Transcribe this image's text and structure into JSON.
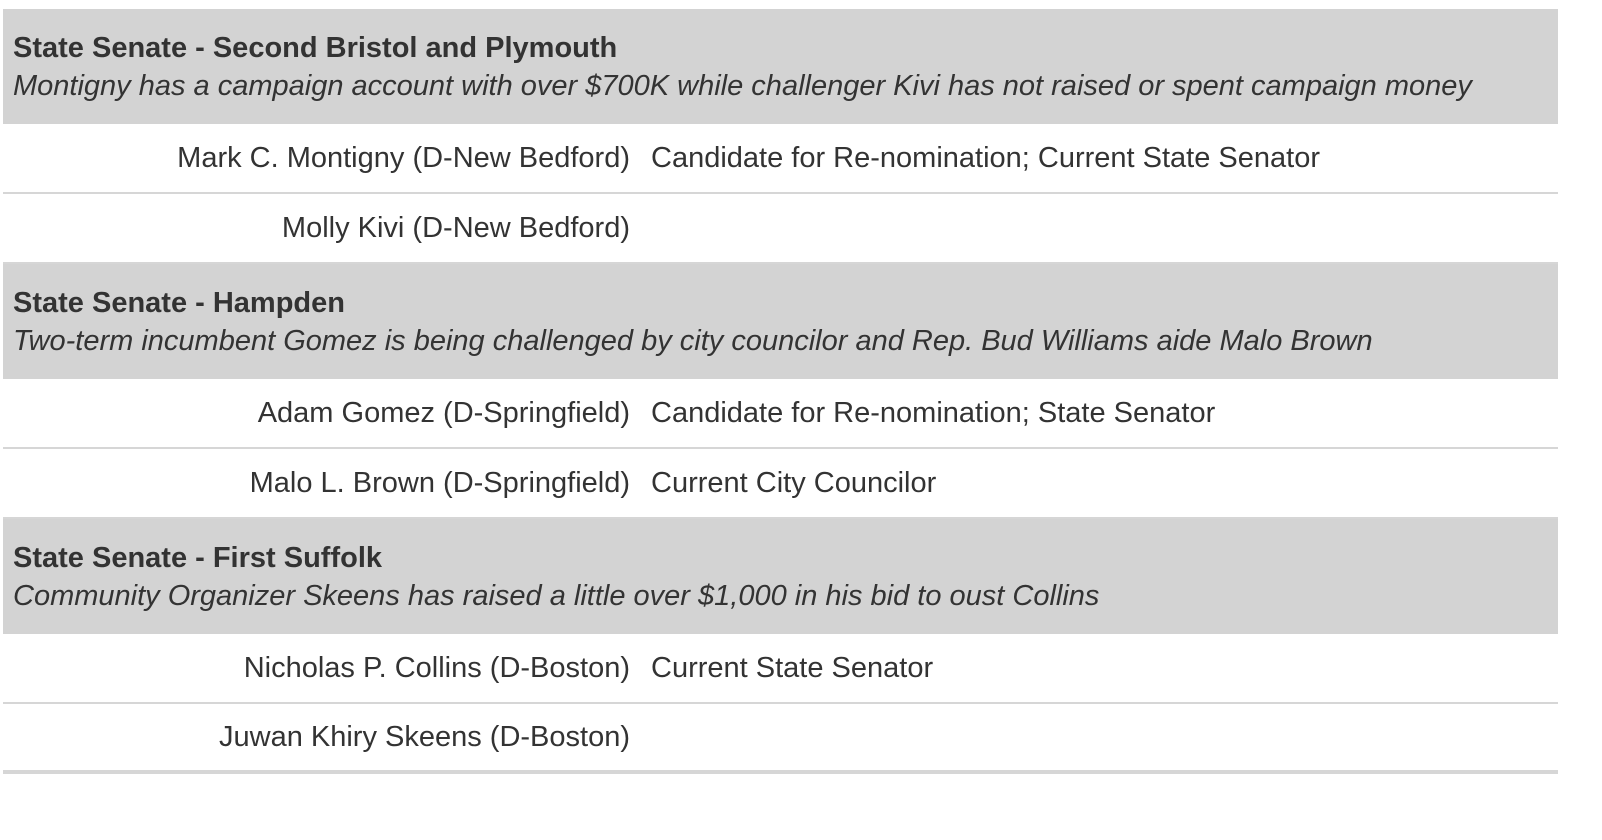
{
  "races": [
    {
      "title": "State Senate - Second Bristol and Plymouth",
      "note": "Montigny has a campaign account with over $700K while challenger Kivi has not raised or spent campaign money",
      "candidates": [
        {
          "name": "Mark C. Montigny (D-New Bedford)",
          "description": "Candidate for Re-nomination; Current State Senator"
        },
        {
          "name": "Molly Kivi (D-New Bedford)",
          "description": ""
        }
      ]
    },
    {
      "title": "State Senate - Hampden",
      "note": "Two-term incumbent Gomez is being challenged by city councilor and Rep. Bud Williams aide Malo Brown",
      "candidates": [
        {
          "name": "Adam Gomez (D-Springfield)",
          "description": "Candidate for Re-nomination; State Senator"
        },
        {
          "name": "Malo L. Brown (D-Springfield)",
          "description": "Current City Councilor"
        }
      ]
    },
    {
      "title": "State Senate - First Suffolk",
      "note": "Community Organizer Skeens has raised a little over $1,000 in his bid to oust Collins",
      "candidates": [
        {
          "name": "Nicholas P. Collins (D-Boston)",
          "description": "Current State Senator"
        },
        {
          "name": "Juwan Khiry Skeens (D-Boston)",
          "description": ""
        }
      ]
    }
  ]
}
